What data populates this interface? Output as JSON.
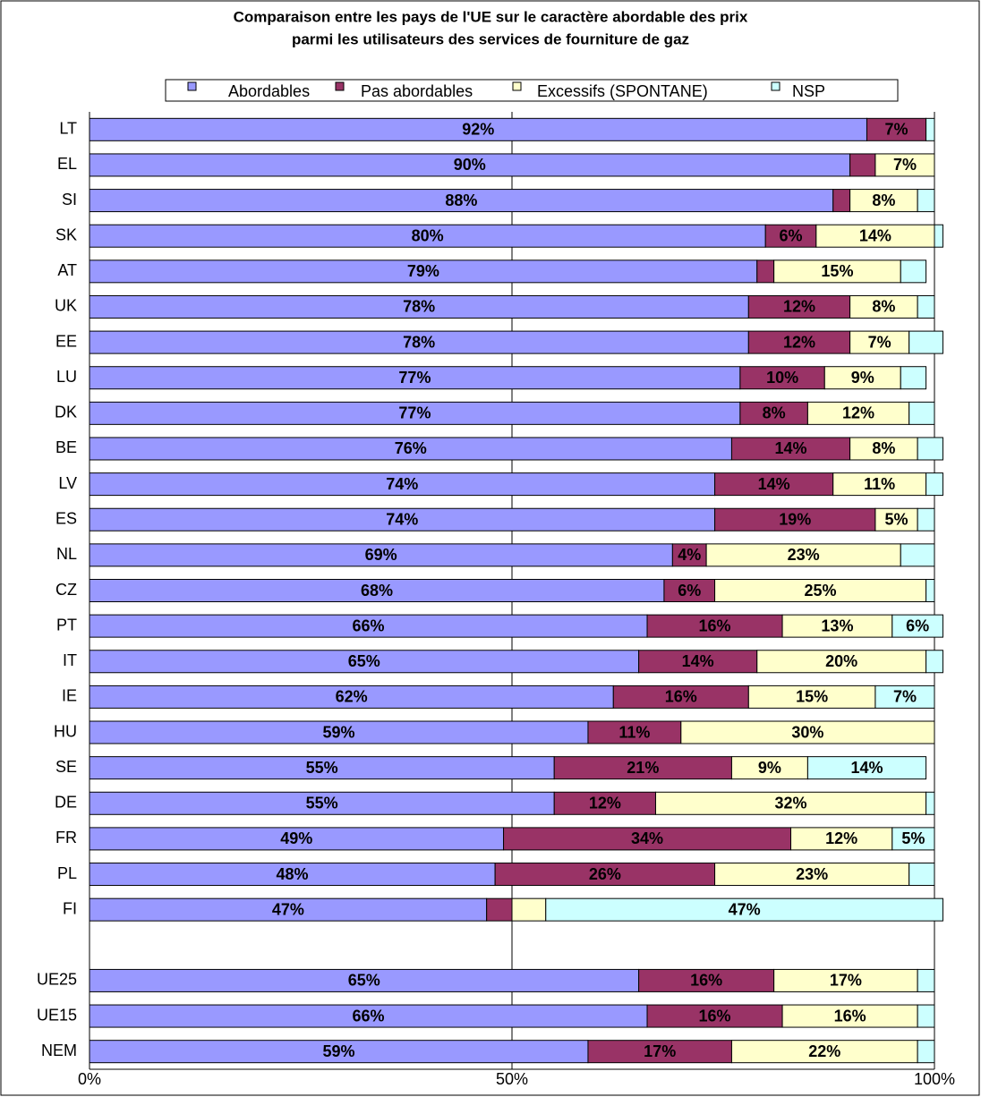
{
  "chart_data": {
    "type": "stacked-bar-horizontal",
    "title": [
      "Comparaison entre les pays de l'UE sur le caractère abordable des prix",
      "parmi les utilisateurs des services de fourniture de gaz"
    ],
    "categories": [
      "LT",
      "EL",
      "SI",
      "SK",
      "AT",
      "UK",
      "EE",
      "LU",
      "DK",
      "BE",
      "LV",
      "ES",
      "NL",
      "CZ",
      "PT",
      "IT",
      "IE",
      "HU",
      "SE",
      "DE",
      "FR",
      "PL",
      "FI",
      null,
      "UE25",
      "UE15",
      "NEM"
    ],
    "series": [
      {
        "name": "Abordables",
        "color": "#9999ff",
        "values": [
          92,
          90,
          88,
          80,
          79,
          78,
          78,
          77,
          77,
          76,
          74,
          74,
          69,
          68,
          66,
          65,
          62,
          59,
          55,
          55,
          49,
          48,
          47,
          null,
          65,
          66,
          59
        ],
        "value_labels": [
          "92%",
          "90%",
          "88%",
          "80%",
          "79%",
          "78%",
          "78%",
          "77%",
          "77%",
          "76%",
          "74%",
          "74%",
          "69%",
          "68%",
          "66%",
          "65%",
          "62%",
          "59%",
          "55%",
          "55%",
          "49%",
          "48%",
          "47%",
          null,
          "65%",
          "66%",
          "59%"
        ]
      },
      {
        "name": "Pas abordables",
        "color": "#993366",
        "values": [
          7,
          3,
          2,
          6,
          2,
          12,
          12,
          10,
          8,
          14,
          14,
          19,
          4,
          6,
          16,
          14,
          16,
          11,
          21,
          12,
          34,
          26,
          3,
          null,
          16,
          16,
          17
        ],
        "value_labels": [
          "7%",
          null,
          null,
          "6%",
          null,
          "12%",
          "12%",
          "10%",
          "8%",
          "14%",
          "14%",
          "19%",
          "4%",
          "6%",
          "16%",
          "14%",
          "16%",
          "11%",
          "21%",
          "12%",
          "34%",
          "26%",
          null,
          null,
          "16%",
          "16%",
          "17%"
        ]
      },
      {
        "name": "Excessifs (SPONTANE)",
        "color": "#ffffcc",
        "values": [
          0,
          7,
          8,
          14,
          15,
          8,
          7,
          9,
          12,
          8,
          11,
          5,
          23,
          25,
          13,
          20,
          15,
          30,
          9,
          32,
          12,
          23,
          4,
          null,
          17,
          16,
          22
        ],
        "value_labels": [
          null,
          "7%",
          "8%",
          "14%",
          "15%",
          "8%",
          "7%",
          "9%",
          "12%",
          "8%",
          "11%",
          "5%",
          "23%",
          "25%",
          "13%",
          "20%",
          "15%",
          "30%",
          "9%",
          "32%",
          "12%",
          "23%",
          null,
          null,
          "17%",
          "16%",
          "22%"
        ]
      },
      {
        "name": "NSP",
        "color": "#ccffff",
        "values": [
          1,
          0,
          2,
          1,
          3,
          2,
          4,
          3,
          3,
          3,
          2,
          2,
          4,
          1,
          6,
          2,
          7,
          0,
          14,
          1,
          5,
          3,
          47,
          null,
          2,
          2,
          2
        ],
        "value_labels": [
          null,
          null,
          null,
          null,
          null,
          null,
          null,
          null,
          null,
          null,
          null,
          null,
          null,
          null,
          "6%",
          null,
          "7%",
          null,
          "14%",
          null,
          "5%",
          null,
          "47%",
          null,
          null,
          null,
          null
        ]
      }
    ],
    "xlim": [
      0,
      100
    ],
    "xticks": [
      {
        "value": 0,
        "label": "0%"
      },
      {
        "value": 50,
        "label": "50%"
      },
      {
        "value": 100,
        "label": "100%"
      }
    ],
    "grid": true,
    "legend": "top"
  }
}
